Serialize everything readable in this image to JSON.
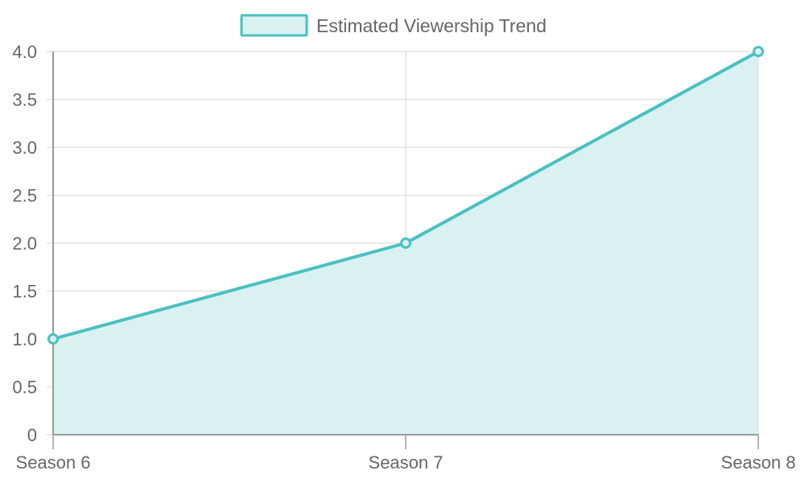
{
  "chart_data": {
    "type": "area",
    "categories": [
      "Season 6",
      "Season 7",
      "Season 8"
    ],
    "series": [
      {
        "name": "Estimated Viewership Trend",
        "values": [
          1.0,
          2.0,
          4.0
        ]
      }
    ],
    "y_ticks": [
      "0",
      "0.5",
      "1.0",
      "1.5",
      "2.0",
      "2.5",
      "3.0",
      "3.5",
      "4.0"
    ],
    "ylim": [
      0,
      4
    ],
    "title": "",
    "xlabel": "",
    "ylabel": "",
    "grid": true,
    "legend_position": "top-center",
    "colors": {
      "line": "#4bc0c0",
      "fill": "#d9f1f1",
      "grid": "#e2e2e2",
      "axis": "#9a9a9a",
      "text": "#666666"
    }
  }
}
